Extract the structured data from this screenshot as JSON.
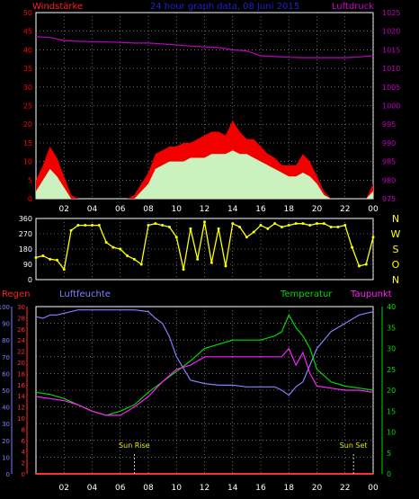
{
  "header": {
    "wind_label": "Windstärke",
    "title": "24 hour graph data, 08 Juni 2015",
    "pressure_label": "Luftdruck"
  },
  "colors": {
    "background": "#000000",
    "frame": "#ffffff",
    "grid": "#b0b0b0",
    "wind_gust": "#ff0000",
    "wind_avg": "#c8ffc8",
    "pressure": "#c000c0",
    "direction": "#ffff00",
    "rain": "#ff3030",
    "humidity": "#8080ff",
    "temperature": "#00d800",
    "dewpoint": "#ff20ff",
    "header_title": "#2020d0"
  },
  "x_ticks": [
    "02",
    "04",
    "06",
    "08",
    "10",
    "12",
    "14",
    "16",
    "18",
    "20",
    "22",
    "00"
  ],
  "chart_data": [
    {
      "type": "area",
      "id": "wind",
      "ylabel_left": "Windstärke",
      "ylabel_right": "Luftdruck",
      "ylim": [
        0,
        50
      ],
      "yticks": [
        "0",
        "5",
        "10",
        "15",
        "20",
        "25",
        "30",
        "35",
        "40",
        "45",
        "50"
      ],
      "ylim_right": [
        975,
        1025
      ],
      "yticks_right": [
        "975",
        "980",
        "985",
        "990",
        "995",
        "1000",
        "1005",
        "1010",
        "1015",
        "1020",
        "1025"
      ],
      "grid": true,
      "series": [
        {
          "name": "Windstärke (gust)",
          "x": [
            0,
            0.5,
            1,
            1.5,
            2,
            2.5,
            3,
            3.5,
            4,
            4.5,
            5,
            5.5,
            6,
            6.5,
            7,
            7.5,
            8,
            8.5,
            9,
            9.5,
            10,
            10.5,
            11,
            11.5,
            12,
            12.5,
            13,
            13.5,
            14,
            14.5,
            15,
            15.5,
            16,
            16.5,
            17,
            17.5,
            18,
            18.5,
            19,
            19.5,
            20,
            20.5,
            21,
            21.5,
            22,
            22.5,
            23,
            23.5,
            24
          ],
          "values": [
            5,
            9,
            14,
            11,
            6,
            1,
            0,
            0,
            0,
            0,
            0,
            0,
            0,
            0,
            1,
            4,
            7,
            12,
            13,
            14,
            14,
            15,
            15,
            16,
            17,
            18,
            18,
            17,
            21,
            18,
            16,
            16,
            14,
            12,
            11,
            9,
            9,
            9,
            12,
            10,
            6,
            2,
            0,
            0,
            0,
            0,
            0,
            0,
            4
          ]
        },
        {
          "name": "Windstärke (average)",
          "x": [
            0,
            0.5,
            1,
            1.5,
            2,
            2.5,
            3,
            3.5,
            4,
            4.5,
            5,
            5.5,
            6,
            6.5,
            7,
            7.5,
            8,
            8.5,
            9,
            9.5,
            10,
            10.5,
            11,
            11.5,
            12,
            12.5,
            13,
            13.5,
            14,
            14.5,
            15,
            15.5,
            16,
            16.5,
            17,
            17.5,
            18,
            18.5,
            19,
            19.5,
            20,
            20.5,
            21,
            21.5,
            22,
            22.5,
            23,
            23.5,
            24
          ],
          "values": [
            2,
            5,
            8,
            6,
            3,
            0,
            0,
            0,
            0,
            0,
            0,
            0,
            0,
            0,
            0,
            2,
            4,
            8,
            9,
            10,
            10,
            10,
            11,
            11,
            11,
            12,
            12,
            12,
            13,
            12,
            12,
            11,
            10,
            9,
            8,
            7,
            6,
            6,
            7,
            6,
            4,
            1,
            0,
            0,
            0,
            0,
            0,
            0,
            2
          ]
        },
        {
          "name": "Luftdruck",
          "axis": "right",
          "x": [
            0,
            1,
            2,
            3,
            4,
            5,
            6,
            7,
            8,
            9,
            10,
            11,
            12,
            13,
            14,
            15,
            16,
            17,
            18,
            19,
            20,
            21,
            22,
            23,
            24
          ],
          "values": [
            1018.5,
            1018.3,
            1017.5,
            1017.3,
            1017.2,
            1017.1,
            1017.0,
            1016.8,
            1016.8,
            1016.6,
            1016.3,
            1016.0,
            1015.8,
            1015.6,
            1015.0,
            1014.7,
            1013.4,
            1013.2,
            1013.0,
            1012.9,
            1012.9,
            1012.9,
            1012.9,
            1013.1,
            1013.4
          ]
        }
      ]
    },
    {
      "type": "scatter",
      "id": "direction",
      "ylim": [
        0,
        360
      ],
      "yticks": [
        "0",
        "90",
        "180",
        "270",
        "360"
      ],
      "ylabels_right": [
        "N",
        "W",
        "S",
        "O",
        "N"
      ],
      "grid": true,
      "series": [
        {
          "name": "Windrichtung",
          "x": [
            0,
            0.5,
            1,
            1.5,
            2,
            2.5,
            3,
            3.5,
            4,
            4.5,
            5,
            5.5,
            6,
            6.5,
            7,
            7.5,
            8,
            8.5,
            9,
            9.5,
            10,
            10.5,
            11,
            11.5,
            12,
            12.5,
            13,
            13.5,
            14,
            14.5,
            15,
            15.5,
            16,
            16.5,
            17,
            17.5,
            18,
            18.5,
            19,
            19.5,
            20,
            20.5,
            21,
            21.5,
            22,
            22.5,
            23,
            23.5,
            24
          ],
          "values": [
            130,
            140,
            120,
            115,
            60,
            290,
            320,
            320,
            320,
            320,
            220,
            190,
            180,
            140,
            120,
            90,
            320,
            330,
            320,
            310,
            250,
            60,
            300,
            120,
            340,
            100,
            300,
            80,
            330,
            310,
            250,
            280,
            320,
            300,
            330,
            310,
            320,
            330,
            330,
            320,
            330,
            330,
            310,
            310,
            320,
            190,
            80,
            90,
            250
          ]
        }
      ]
    },
    {
      "type": "line",
      "id": "temperature",
      "ylabel_left": "Regen",
      "ylabel_left2": "Luftfeuchte",
      "ylabel_right": "Temperatur",
      "ylabel_right2": "Taupunkt",
      "ylim_rain": [
        0,
        30
      ],
      "yticks_rain": [
        "0",
        "2",
        "4",
        "6",
        "8",
        "10",
        "12",
        "14",
        "16",
        "18",
        "20",
        "22",
        "24",
        "26",
        "28",
        "30"
      ],
      "ylim_humidity": [
        0,
        100
      ],
      "yticks_humidity": [
        "0",
        "10",
        "20",
        "30",
        "40",
        "50",
        "60",
        "70",
        "80",
        "90",
        "100"
      ],
      "ylim": [
        0,
        40
      ],
      "yticks": [
        "0",
        "5",
        "10",
        "15",
        "20",
        "25",
        "30",
        "35",
        "40"
      ],
      "grid": true,
      "annotations": [
        {
          "text": "Sun Rise",
          "x": 7.0
        },
        {
          "text": "Sun Set",
          "x": 22.6
        }
      ],
      "series": [
        {
          "name": "Regen",
          "axis": "rain",
          "x": [
            0,
            24
          ],
          "values": [
            0,
            0
          ]
        },
        {
          "name": "Luftfeuchte",
          "axis": "humidity",
          "x": [
            0,
            0.5,
            1,
            1.5,
            2,
            3,
            4,
            5,
            6,
            7,
            8,
            8.5,
            9,
            9.5,
            10,
            11,
            12,
            13,
            14,
            15,
            16,
            17,
            17.5,
            18,
            18.5,
            19,
            19.5,
            20,
            21,
            22,
            23,
            24
          ],
          "values": [
            94,
            93,
            95,
            95,
            96,
            98,
            98,
            98,
            98,
            98,
            97,
            93,
            90,
            82,
            70,
            56,
            54,
            53,
            53,
            52,
            52,
            52,
            50,
            47,
            52,
            55,
            65,
            75,
            85,
            90,
            95,
            97
          ]
        },
        {
          "name": "Temperatur",
          "x": [
            0,
            1,
            2,
            3,
            4,
            5,
            6,
            7,
            8,
            9,
            10,
            11,
            12,
            13,
            14,
            15,
            16,
            17,
            17.5,
            18,
            18.5,
            19,
            19.5,
            20,
            21,
            22,
            23,
            24
          ],
          "values": [
            19.5,
            19,
            18,
            16.5,
            15,
            14,
            15,
            16.5,
            19.5,
            22,
            24.5,
            27,
            30,
            31,
            32,
            32,
            32,
            33,
            34,
            38,
            35,
            33,
            30,
            25,
            22,
            21,
            20.5,
            20
          ]
        },
        {
          "name": "Taupunkt",
          "x": [
            0,
            1,
            2,
            3,
            4,
            5,
            6,
            7,
            8,
            9,
            10,
            11,
            12,
            13,
            14,
            15,
            16,
            17,
            17.5,
            18,
            18.5,
            19,
            19.5,
            20,
            21,
            22,
            23,
            24
          ],
          "values": [
            18.5,
            18,
            17.5,
            16.5,
            15,
            14,
            14,
            16,
            18.5,
            22,
            25,
            26,
            28,
            28,
            28,
            28,
            28,
            28,
            28,
            30,
            26,
            29,
            24,
            21,
            20.5,
            20,
            20,
            19.5
          ]
        }
      ]
    }
  ]
}
